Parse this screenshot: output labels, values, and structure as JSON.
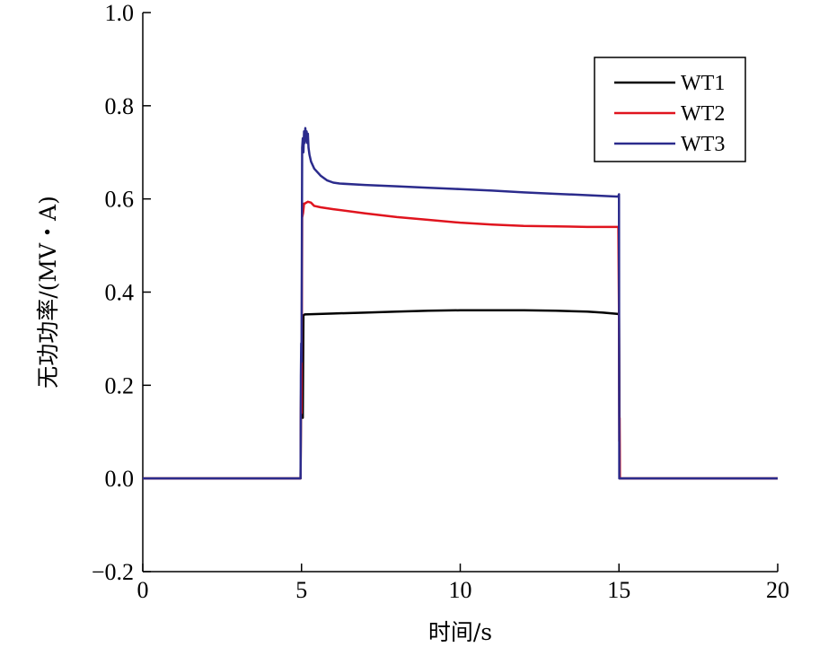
{
  "chart_data": {
    "type": "line",
    "xlabel": "时间/s",
    "ylabel": "无功功率/(MV・A)",
    "xlim": [
      0,
      20
    ],
    "ylim": [
      -0.2,
      1.0
    ],
    "xticks": [
      0,
      5,
      10,
      15,
      20
    ],
    "xtick_labels": [
      "0",
      "5",
      "10",
      "15",
      "20"
    ],
    "yticks": [
      -0.2,
      0.0,
      0.2,
      0.4,
      0.6,
      0.8,
      1.0
    ],
    "ytick_labels": [
      "−0.2",
      "0.0",
      "0.2",
      "0.4",
      "0.6",
      "0.8",
      "1.0"
    ],
    "grid": false,
    "legend_position": "top-right",
    "series": [
      {
        "name": "WT1",
        "color": "#000000",
        "x": [
          0,
          4.97,
          4.98,
          4.99,
          5.0,
          5.02,
          5.04,
          5.06,
          5.1,
          6.0,
          7.0,
          8.0,
          9.0,
          10.0,
          11.0,
          12.0,
          13.0,
          14.0,
          14.5,
          14.98,
          15.0,
          15.02,
          15.05,
          20
        ],
        "y": [
          0,
          0,
          0.12,
          0.25,
          0.17,
          0.33,
          0.13,
          0.35,
          0.352,
          0.354,
          0.356,
          0.358,
          0.36,
          0.361,
          0.361,
          0.361,
          0.36,
          0.358,
          0.356,
          0.353,
          0.35,
          0.0,
          0.0,
          0
        ]
      },
      {
        "name": "WT2",
        "color": "#e0141e",
        "x": [
          0,
          4.97,
          4.98,
          4.99,
          5.0,
          5.02,
          5.05,
          5.08,
          5.1,
          5.2,
          5.3,
          5.4,
          5.6,
          6.0,
          7.0,
          8.0,
          9.0,
          10.0,
          11.0,
          12.0,
          13.0,
          14.0,
          14.98,
          15.0,
          15.01,
          15.02,
          15.03,
          15.05,
          20
        ],
        "y": [
          0,
          0,
          0.14,
          0.21,
          0.14,
          0.56,
          0.57,
          0.59,
          0.59,
          0.594,
          0.592,
          0.585,
          0.582,
          0.578,
          0.569,
          0.561,
          0.555,
          0.549,
          0.545,
          0.542,
          0.541,
          0.54,
          0.54,
          0.36,
          0.08,
          0.13,
          0.0,
          0.0,
          0
        ]
      },
      {
        "name": "WT3",
        "color": "#2b2b8c",
        "x": [
          0,
          4.97,
          4.98,
          4.99,
          5.0,
          5.02,
          5.04,
          5.06,
          5.08,
          5.1,
          5.12,
          5.14,
          5.16,
          5.18,
          5.2,
          5.22,
          5.25,
          5.3,
          5.4,
          5.6,
          5.8,
          6.0,
          6.2,
          7.0,
          8.0,
          9.0,
          10.0,
          11.0,
          12.0,
          13.0,
          14.0,
          14.98,
          15.0,
          15.01,
          15.02,
          15.05,
          20
        ],
        "y": [
          0,
          0,
          0.22,
          0.29,
          0.25,
          0.71,
          0.73,
          0.7,
          0.745,
          0.72,
          0.752,
          0.725,
          0.745,
          0.72,
          0.74,
          0.71,
          0.695,
          0.68,
          0.665,
          0.65,
          0.64,
          0.635,
          0.633,
          0.63,
          0.627,
          0.624,
          0.621,
          0.618,
          0.614,
          0.611,
          0.608,
          0.605,
          0.61,
          0.0,
          0.0,
          0.0,
          0
        ]
      }
    ]
  }
}
